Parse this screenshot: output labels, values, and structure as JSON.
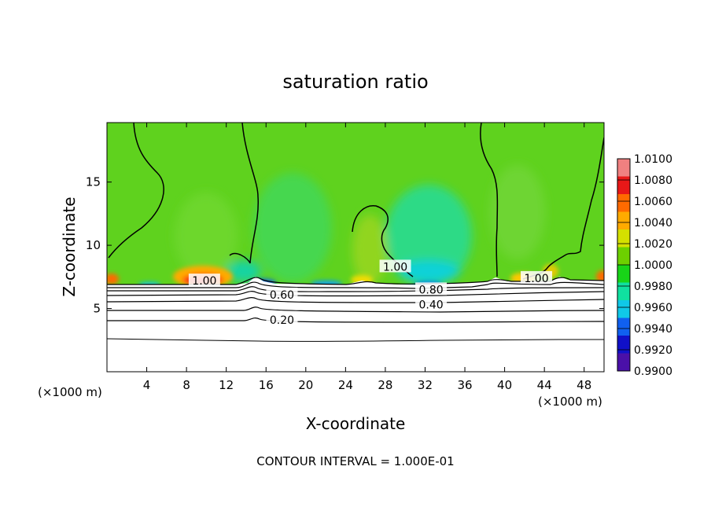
{
  "chart_data": {
    "type": "heatmap",
    "title": "saturation ratio",
    "xlabel": "X-coordinate",
    "ylabel": "Z-coordinate",
    "x_unit_left": "(×1000 m)",
    "x_unit_right": "(×1000 m)",
    "footer": "CONTOUR INTERVAL = 1.000E-01",
    "xlim": [
      0,
      50
    ],
    "ylim": [
      0,
      19.7
    ],
    "xticks": [
      4,
      8,
      12,
      16,
      20,
      24,
      28,
      32,
      36,
      40,
      44,
      48
    ],
    "yticks": [
      5,
      10,
      15
    ],
    "colorbar": {
      "min": 0.99,
      "max": 1.01,
      "ticks": [
        "1.0100",
        "1.0080",
        "1.0060",
        "1.0040",
        "1.0020",
        "1.0000",
        "0.9980",
        "0.9960",
        "0.9940",
        "0.9920",
        "0.9900"
      ],
      "colors": [
        "#f08080",
        "#e81818",
        "#ff6a00",
        "#ffaa00",
        "#d4e000",
        "#6dd000",
        "#18d418",
        "#10e0a0",
        "#10c8e8",
        "#1060f0",
        "#1010c8",
        "#4a10a8"
      ]
    },
    "contour_labels": [
      {
        "text": "1.00",
        "x": 9.8,
        "z": 7.2
      },
      {
        "text": "1.00",
        "x": 29,
        "z": 8.3
      },
      {
        "text": "1.00",
        "x": 43.2,
        "z": 7.4
      },
      {
        "text": "0.80",
        "x": 32.6,
        "z": 6.5
      },
      {
        "text": "0.60",
        "x": 17.6,
        "z": 6.1
      },
      {
        "text": "0.40",
        "x": 32.6,
        "z": 5.3
      },
      {
        "text": "0.20",
        "x": 17.6,
        "z": 4.1
      }
    ],
    "grid": false
  }
}
